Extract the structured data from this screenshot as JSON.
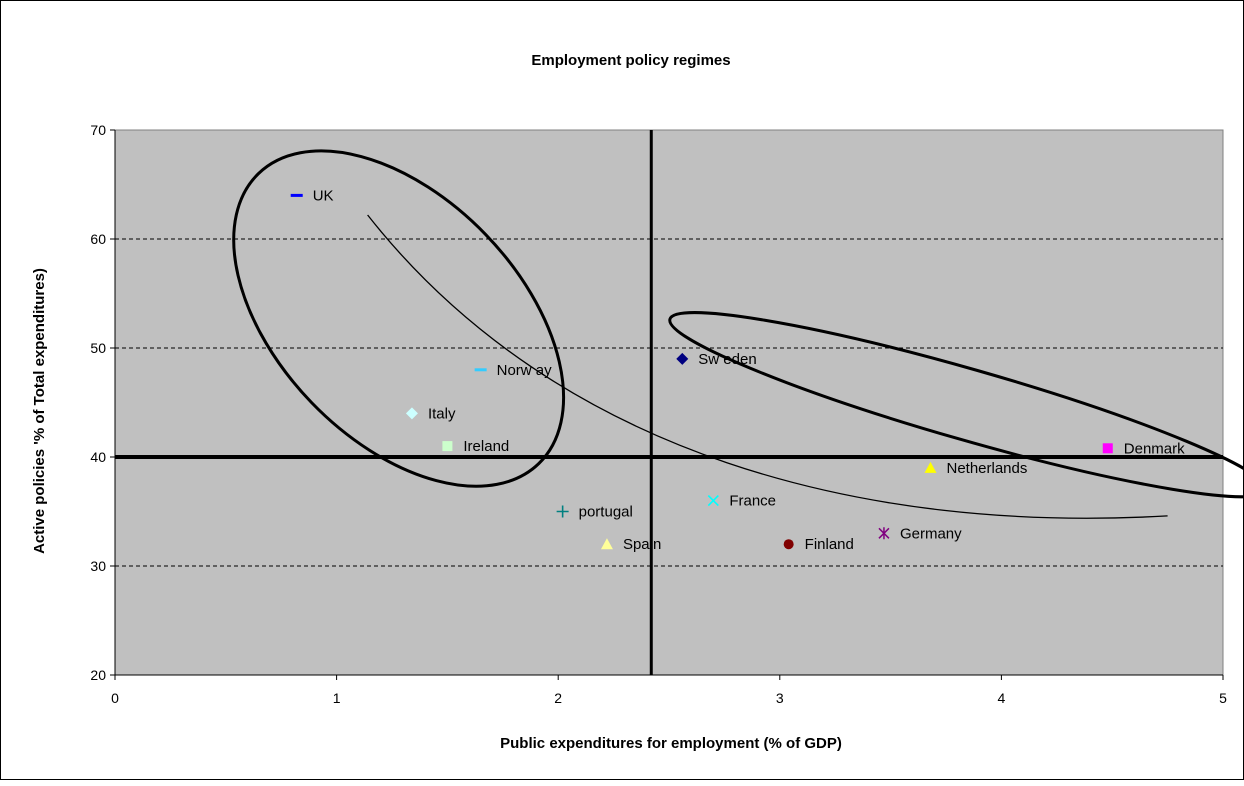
{
  "chart_data": {
    "type": "scatter",
    "title": "Employment policy regimes",
    "xlabel": "Public expenditures for employment (% of GDP)",
    "ylabel": "Active policies '% of Total expenditures)",
    "xlim": [
      0,
      5
    ],
    "ylim": [
      20,
      70
    ],
    "xticks": [
      "0",
      "1",
      "2",
      "3",
      "4",
      "5"
    ],
    "yticks": [
      "20",
      "30",
      "40",
      "50",
      "60",
      "70"
    ],
    "grid": "horizontal dashed",
    "background": "#c0c0c0",
    "reference_lines": {
      "x": 2.42,
      "y": 40
    },
    "series": [
      {
        "name": "UK",
        "x": 0.82,
        "y": 64,
        "marker": "dash",
        "color": "#0000ff"
      },
      {
        "name": "Norw ay",
        "x": 1.65,
        "y": 48,
        "marker": "dash",
        "color": "#33ccff"
      },
      {
        "name": "Italy",
        "x": 1.34,
        "y": 44,
        "marker": "diamond",
        "color": "#ccffff"
      },
      {
        "name": "Ireland",
        "x": 1.5,
        "y": 41,
        "marker": "square",
        "color": "#ccffcc"
      },
      {
        "name": "portugal",
        "x": 2.02,
        "y": 35,
        "marker": "plus",
        "color": "#008080"
      },
      {
        "name": "Spain",
        "x": 2.22,
        "y": 32,
        "marker": "triangle",
        "color": "#ffff99"
      },
      {
        "name": "Sw eden",
        "x": 2.56,
        "y": 49,
        "marker": "diamond",
        "color": "#000080"
      },
      {
        "name": "France",
        "x": 2.7,
        "y": 36,
        "marker": "x",
        "color": "#00ffff"
      },
      {
        "name": "Finland",
        "x": 3.04,
        "y": 32,
        "marker": "circle",
        "color": "#800000"
      },
      {
        "name": "Germany",
        "x": 3.47,
        "y": 33,
        "marker": "star",
        "color": "#800080"
      },
      {
        "name": "Netherlands",
        "x": 3.68,
        "y": 39,
        "marker": "triangle",
        "color": "#ffff00"
      },
      {
        "name": "Denmark",
        "x": 4.48,
        "y": 40.8,
        "marker": "square",
        "color": "#ff00ff"
      }
    ],
    "annotations": {
      "ellipses": [
        {
          "cx": 1.28,
          "cy": 52.7,
          "rx": 0.91,
          "ry": 11.1,
          "angle_deg": 46,
          "stroke": 3
        },
        {
          "cx": 3.85,
          "cy": 44.8,
          "rx": 1.4,
          "ry": 3.25,
          "angle_deg": 16,
          "stroke": 3
        }
      ],
      "curve": [
        [
          1.14,
          62.2
        ],
        [
          2.0,
          40
        ],
        [
          3.4,
          33
        ],
        [
          4.75,
          34.6
        ]
      ]
    }
  }
}
